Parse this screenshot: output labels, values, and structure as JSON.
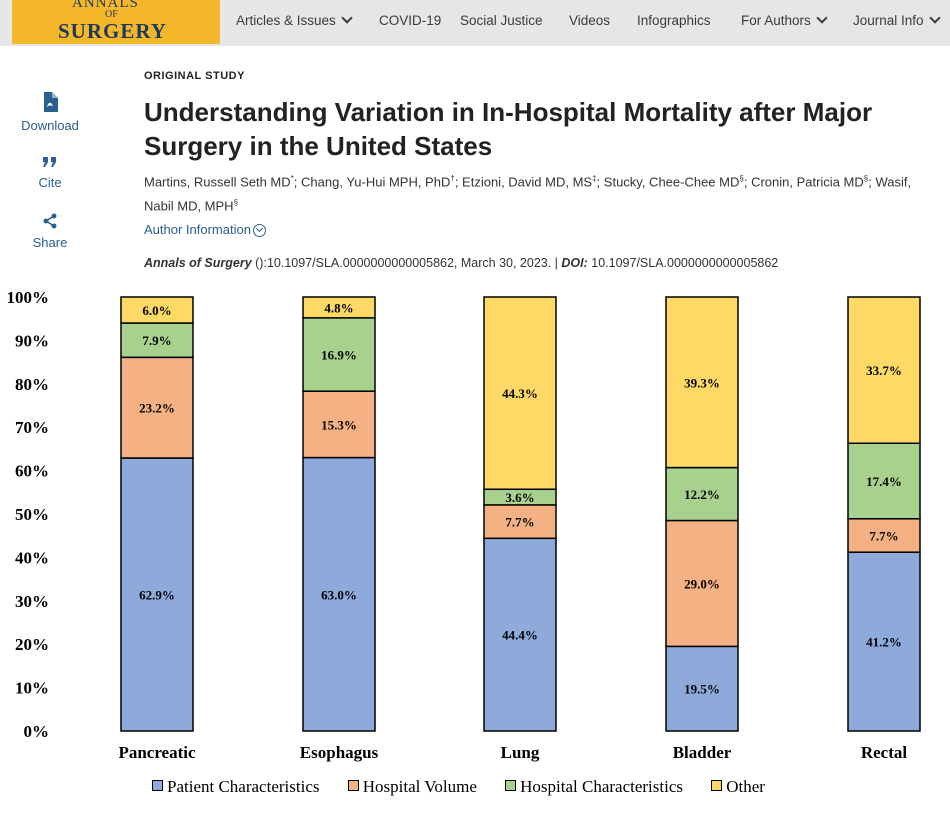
{
  "nav": {
    "logo": {
      "line1": "ANNALS",
      "line2": "OF",
      "line3": "SURGERY"
    },
    "items": [
      {
        "label": "Articles & Issues",
        "dropdown": true
      },
      {
        "label": "COVID-19",
        "dropdown": false
      },
      {
        "label": "Social Justice",
        "dropdown": false
      },
      {
        "label": "Videos",
        "dropdown": false
      },
      {
        "label": "Infographics",
        "dropdown": false
      },
      {
        "label": "For Authors",
        "dropdown": true
      },
      {
        "label": "Journal Info",
        "dropdown": true
      }
    ]
  },
  "tools": [
    {
      "label": "Download",
      "icon": "pdf-icon"
    },
    {
      "label": "Cite",
      "icon": "quote-icon"
    },
    {
      "label": "Share",
      "icon": "share-icon"
    }
  ],
  "article": {
    "kicker": "ORIGINAL STUDY",
    "title": "Understanding Variation in In-Hospital Mortality after Major Surgery in the United States",
    "authors": [
      {
        "name": "Martins, Russell Seth MD",
        "sup": "*"
      },
      {
        "name": "Chang, Yu-Hui MPH, PhD",
        "sup": "†"
      },
      {
        "name": "Etzioni, David MD, MS",
        "sup": "‡"
      },
      {
        "name": "Stucky, Chee-Chee MD",
        "sup": "§"
      },
      {
        "name": "Cronin, Patricia MD",
        "sup": "§"
      },
      {
        "name": "Wasif, Nabil MD, MPH",
        "sup": "§"
      }
    ],
    "author_info_label": "Author Information",
    "citation": {
      "journal": "Annals of Surgery",
      "detail": " ():10.1097/SLA.0000000000005862, March 30, 2023. | ",
      "doi_label": "DOI:",
      "doi": " 10.1097/SLA.0000000000005862"
    }
  },
  "colors": {
    "patient": "#8eaadb",
    "volume": "#f4b183",
    "hospital": "#a9d18e",
    "other": "#ffd966"
  },
  "chart_data": {
    "type": "bar",
    "stacked": true,
    "title": "",
    "xlabel": "",
    "ylabel": "",
    "ylim": [
      0,
      100
    ],
    "yticks": [
      "0%",
      "10%",
      "20%",
      "30%",
      "40%",
      "50%",
      "60%",
      "70%",
      "80%",
      "90%",
      "100%"
    ],
    "categories": [
      "Pancreatic",
      "Esophagus",
      "Lung",
      "Bladder",
      "Rectal"
    ],
    "series": [
      {
        "name": "Patient Characteristics",
        "key": "patient",
        "values": [
          62.9,
          63.0,
          44.4,
          19.5,
          41.2
        ]
      },
      {
        "name": "Hospital Volume",
        "key": "volume",
        "values": [
          23.2,
          15.3,
          7.7,
          29.0,
          7.7
        ]
      },
      {
        "name": "Hospital Characteristics",
        "key": "hospital",
        "values": [
          7.9,
          16.9,
          3.6,
          12.2,
          17.4
        ]
      },
      {
        "name": "Other",
        "key": "other",
        "values": [
          6.0,
          4.8,
          44.3,
          39.3,
          33.7
        ]
      }
    ],
    "legend_position": "bottom"
  }
}
